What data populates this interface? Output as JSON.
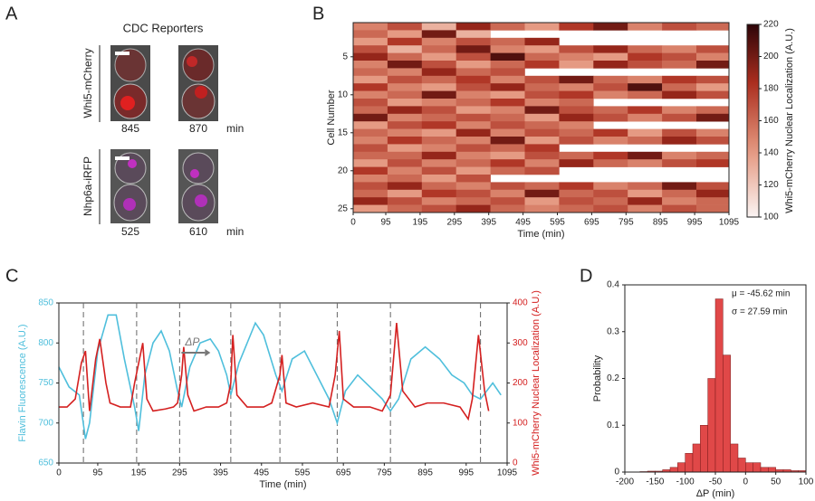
{
  "panel_a": {
    "panel": "A",
    "title": "CDC Reporters",
    "rows": [
      {
        "label": "Whi5-mCherry",
        "times": [
          "845",
          "870"
        ],
        "unit": "min"
      },
      {
        "label": "Nhp6a-iRFP",
        "times": [
          "525",
          "610"
        ],
        "unit": "min"
      }
    ]
  },
  "chart_data": [
    {
      "type": "heatmap",
      "panel": "B",
      "xlabel": "Time (min)",
      "ylabel": "Cell Number",
      "colorbar_label": "Whi5-mCherry Nuclear Localization (A.U.)",
      "x": [
        0,
        100,
        200,
        300,
        400,
        500,
        600,
        700,
        800,
        900,
        1000,
        1095
      ],
      "xlim": [
        0,
        1095
      ],
      "xticks": [
        0,
        95,
        195,
        295,
        395,
        495,
        595,
        695,
        795,
        895,
        995,
        1095
      ],
      "ylim": [
        0.5,
        25.5
      ],
      "yticks": [
        5,
        10,
        15,
        20,
        25
      ],
      "clim": [
        100,
        220
      ],
      "cticks": [
        100,
        120,
        140,
        160,
        180,
        200,
        220
      ],
      "values": [
        [
          150,
          170,
          130,
          190,
          160,
          140,
          180,
          200,
          150,
          170,
          160
        ],
        [
          160,
          140,
          200,
          130,
          null,
          null,
          null,
          null,
          null,
          null,
          null
        ],
        [
          140,
          180,
          150,
          170,
          160,
          190,
          null,
          null,
          null,
          null,
          null
        ],
        [
          170,
          130,
          160,
          200,
          150,
          140,
          170,
          190,
          160,
          150,
          170
        ],
        [
          190,
          160,
          140,
          170,
          210,
          160,
          150,
          140,
          180,
          170,
          150
        ],
        [
          150,
          200,
          170,
          140,
          160,
          180,
          140,
          190,
          170,
          160,
          200
        ],
        [
          160,
          150,
          190,
          160,
          170,
          null,
          null,
          null,
          null,
          null,
          null
        ],
        [
          140,
          170,
          160,
          180,
          150,
          170,
          200,
          160,
          150,
          180,
          170
        ],
        [
          180,
          150,
          140,
          170,
          190,
          160,
          150,
          170,
          210,
          160,
          140
        ],
        [
          150,
          160,
          200,
          150,
          140,
          170,
          180,
          150,
          160,
          190,
          170
        ],
        [
          170,
          140,
          150,
          160,
          180,
          150,
          160,
          null,
          null,
          null,
          null
        ],
        [
          160,
          190,
          170,
          140,
          150,
          200,
          170,
          160,
          180,
          150,
          160
        ],
        [
          200,
          150,
          160,
          170,
          160,
          140,
          190,
          170,
          150,
          170,
          200
        ],
        [
          140,
          170,
          180,
          150,
          170,
          160,
          150,
          null,
          null,
          null,
          null
        ],
        [
          160,
          150,
          140,
          190,
          150,
          170,
          160,
          180,
          140,
          170,
          150
        ],
        [
          150,
          180,
          160,
          150,
          200,
          140,
          170,
          150,
          160,
          190,
          170
        ],
        [
          170,
          140,
          150,
          170,
          160,
          180,
          null,
          null,
          null,
          null,
          null
        ],
        [
          160,
          160,
          190,
          150,
          140,
          170,
          160,
          180,
          200,
          150,
          160
        ],
        [
          140,
          170,
          150,
          160,
          180,
          150,
          190,
          160,
          150,
          170,
          180
        ],
        [
          180,
          150,
          170,
          140,
          160,
          170,
          null,
          null,
          null,
          null,
          null
        ],
        [
          150,
          160,
          140,
          170,
          null,
          null,
          null,
          null,
          null,
          null,
          null
        ],
        [
          170,
          190,
          160,
          150,
          170,
          160,
          180,
          150,
          160,
          200,
          170
        ],
        [
          160,
          140,
          180,
          170,
          150,
          200,
          160,
          170,
          140,
          160,
          190
        ],
        [
          190,
          170,
          150,
          160,
          170,
          140,
          170,
          160,
          190,
          150,
          160
        ],
        [
          140,
          160,
          170,
          190,
          160,
          150,
          160,
          170,
          150,
          170,
          160
        ]
      ]
    },
    {
      "type": "line",
      "panel": "C",
      "xlabel": "Time (min)",
      "ylabel": "Flavin Fluorescence (A.U.)",
      "y2label": "Whi5-mCherry Nuclear Localization (A.U.)",
      "annotation": "ΔP",
      "xlim": [
        0,
        1095
      ],
      "xticks": [
        0,
        95,
        195,
        295,
        395,
        495,
        595,
        695,
        795,
        895,
        995,
        1095
      ],
      "ylim": [
        650,
        850
      ],
      "yticks": [
        650,
        700,
        750,
        800,
        850
      ],
      "y2lim": [
        0,
        400
      ],
      "y2ticks": [
        0,
        100,
        200,
        300,
        400
      ],
      "vlines": [
        60,
        190,
        295,
        420,
        540,
        680,
        810,
        1030
      ],
      "series": [
        {
          "color": "#4fbfdc",
          "x": [
            0,
            25,
            50,
            65,
            75,
            95,
            120,
            140,
            160,
            185,
            195,
            210,
            230,
            250,
            270,
            290,
            300,
            320,
            345,
            370,
            390,
            410,
            420,
            440,
            460,
            480,
            500,
            530,
            545,
            570,
            600,
            630,
            660,
            680,
            700,
            730,
            760,
            790,
            810,
            830,
            860,
            895,
            930,
            960,
            990,
            1010,
            1030,
            1060,
            1080
          ],
          "values": [
            770,
            745,
            735,
            680,
            700,
            790,
            835,
            835,
            780,
            720,
            690,
            760,
            800,
            815,
            790,
            740,
            720,
            770,
            800,
            805,
            790,
            760,
            735,
            775,
            800,
            825,
            810,
            760,
            740,
            780,
            790,
            760,
            730,
            700,
            740,
            760,
            745,
            730,
            715,
            730,
            780,
            795,
            780,
            760,
            750,
            735,
            730,
            750,
            735
          ]
        },
        {
          "color": "#d42020",
          "axis": "y2",
          "x": [
            0,
            20,
            40,
            55,
            65,
            75,
            90,
            100,
            115,
            125,
            150,
            175,
            185,
            195,
            205,
            215,
            230,
            260,
            280,
            290,
            300,
            305,
            315,
            330,
            360,
            390,
            410,
            420,
            425,
            435,
            460,
            500,
            520,
            540,
            545,
            555,
            580,
            620,
            660,
            675,
            685,
            695,
            720,
            760,
            790,
            810,
            825,
            840,
            870,
            900,
            940,
            980,
            1000,
            1010,
            1025,
            1040,
            1050
          ],
          "values": [
            140,
            140,
            160,
            250,
            280,
            130,
            260,
            310,
            200,
            150,
            140,
            140,
            200,
            250,
            300,
            160,
            130,
            135,
            140,
            150,
            220,
            290,
            170,
            130,
            140,
            140,
            150,
            200,
            320,
            170,
            140,
            140,
            150,
            220,
            270,
            150,
            140,
            150,
            140,
            220,
            330,
            160,
            140,
            140,
            130,
            170,
            350,
            180,
            140,
            150,
            150,
            140,
            110,
            160,
            320,
            180,
            130
          ]
        }
      ]
    },
    {
      "type": "histogram",
      "panel": "D",
      "xlabel": "ΔP (min)",
      "ylabel": "Probability",
      "color": "#e04848",
      "annotations": [
        "μ = -45.62 min",
        "σ = 27.59 min"
      ],
      "bins": [
        -175,
        -162.5,
        -150,
        -137.5,
        -125,
        -112.5,
        -100,
        -87.5,
        -75,
        -62.5,
        -50,
        -37.5,
        -25,
        -12.5,
        0,
        12.5,
        25,
        37.5,
        50,
        62.5,
        75,
        87.5,
        100
      ],
      "values": [
        0.001,
        0.002,
        0.002,
        0.005,
        0.01,
        0.02,
        0.04,
        0.06,
        0.1,
        0.2,
        0.37,
        0.25,
        0.06,
        0.03,
        0.02,
        0.02,
        0.01,
        0.01,
        0.005,
        0.005,
        0.003,
        0.003
      ],
      "xlim": [
        -200,
        100
      ],
      "xticks": [
        -200,
        -150,
        -100,
        -50,
        0,
        50,
        100
      ],
      "ylim": [
        0,
        0.4
      ],
      "yticks": [
        0,
        0.1,
        0.2,
        0.3,
        0.4
      ]
    }
  ]
}
